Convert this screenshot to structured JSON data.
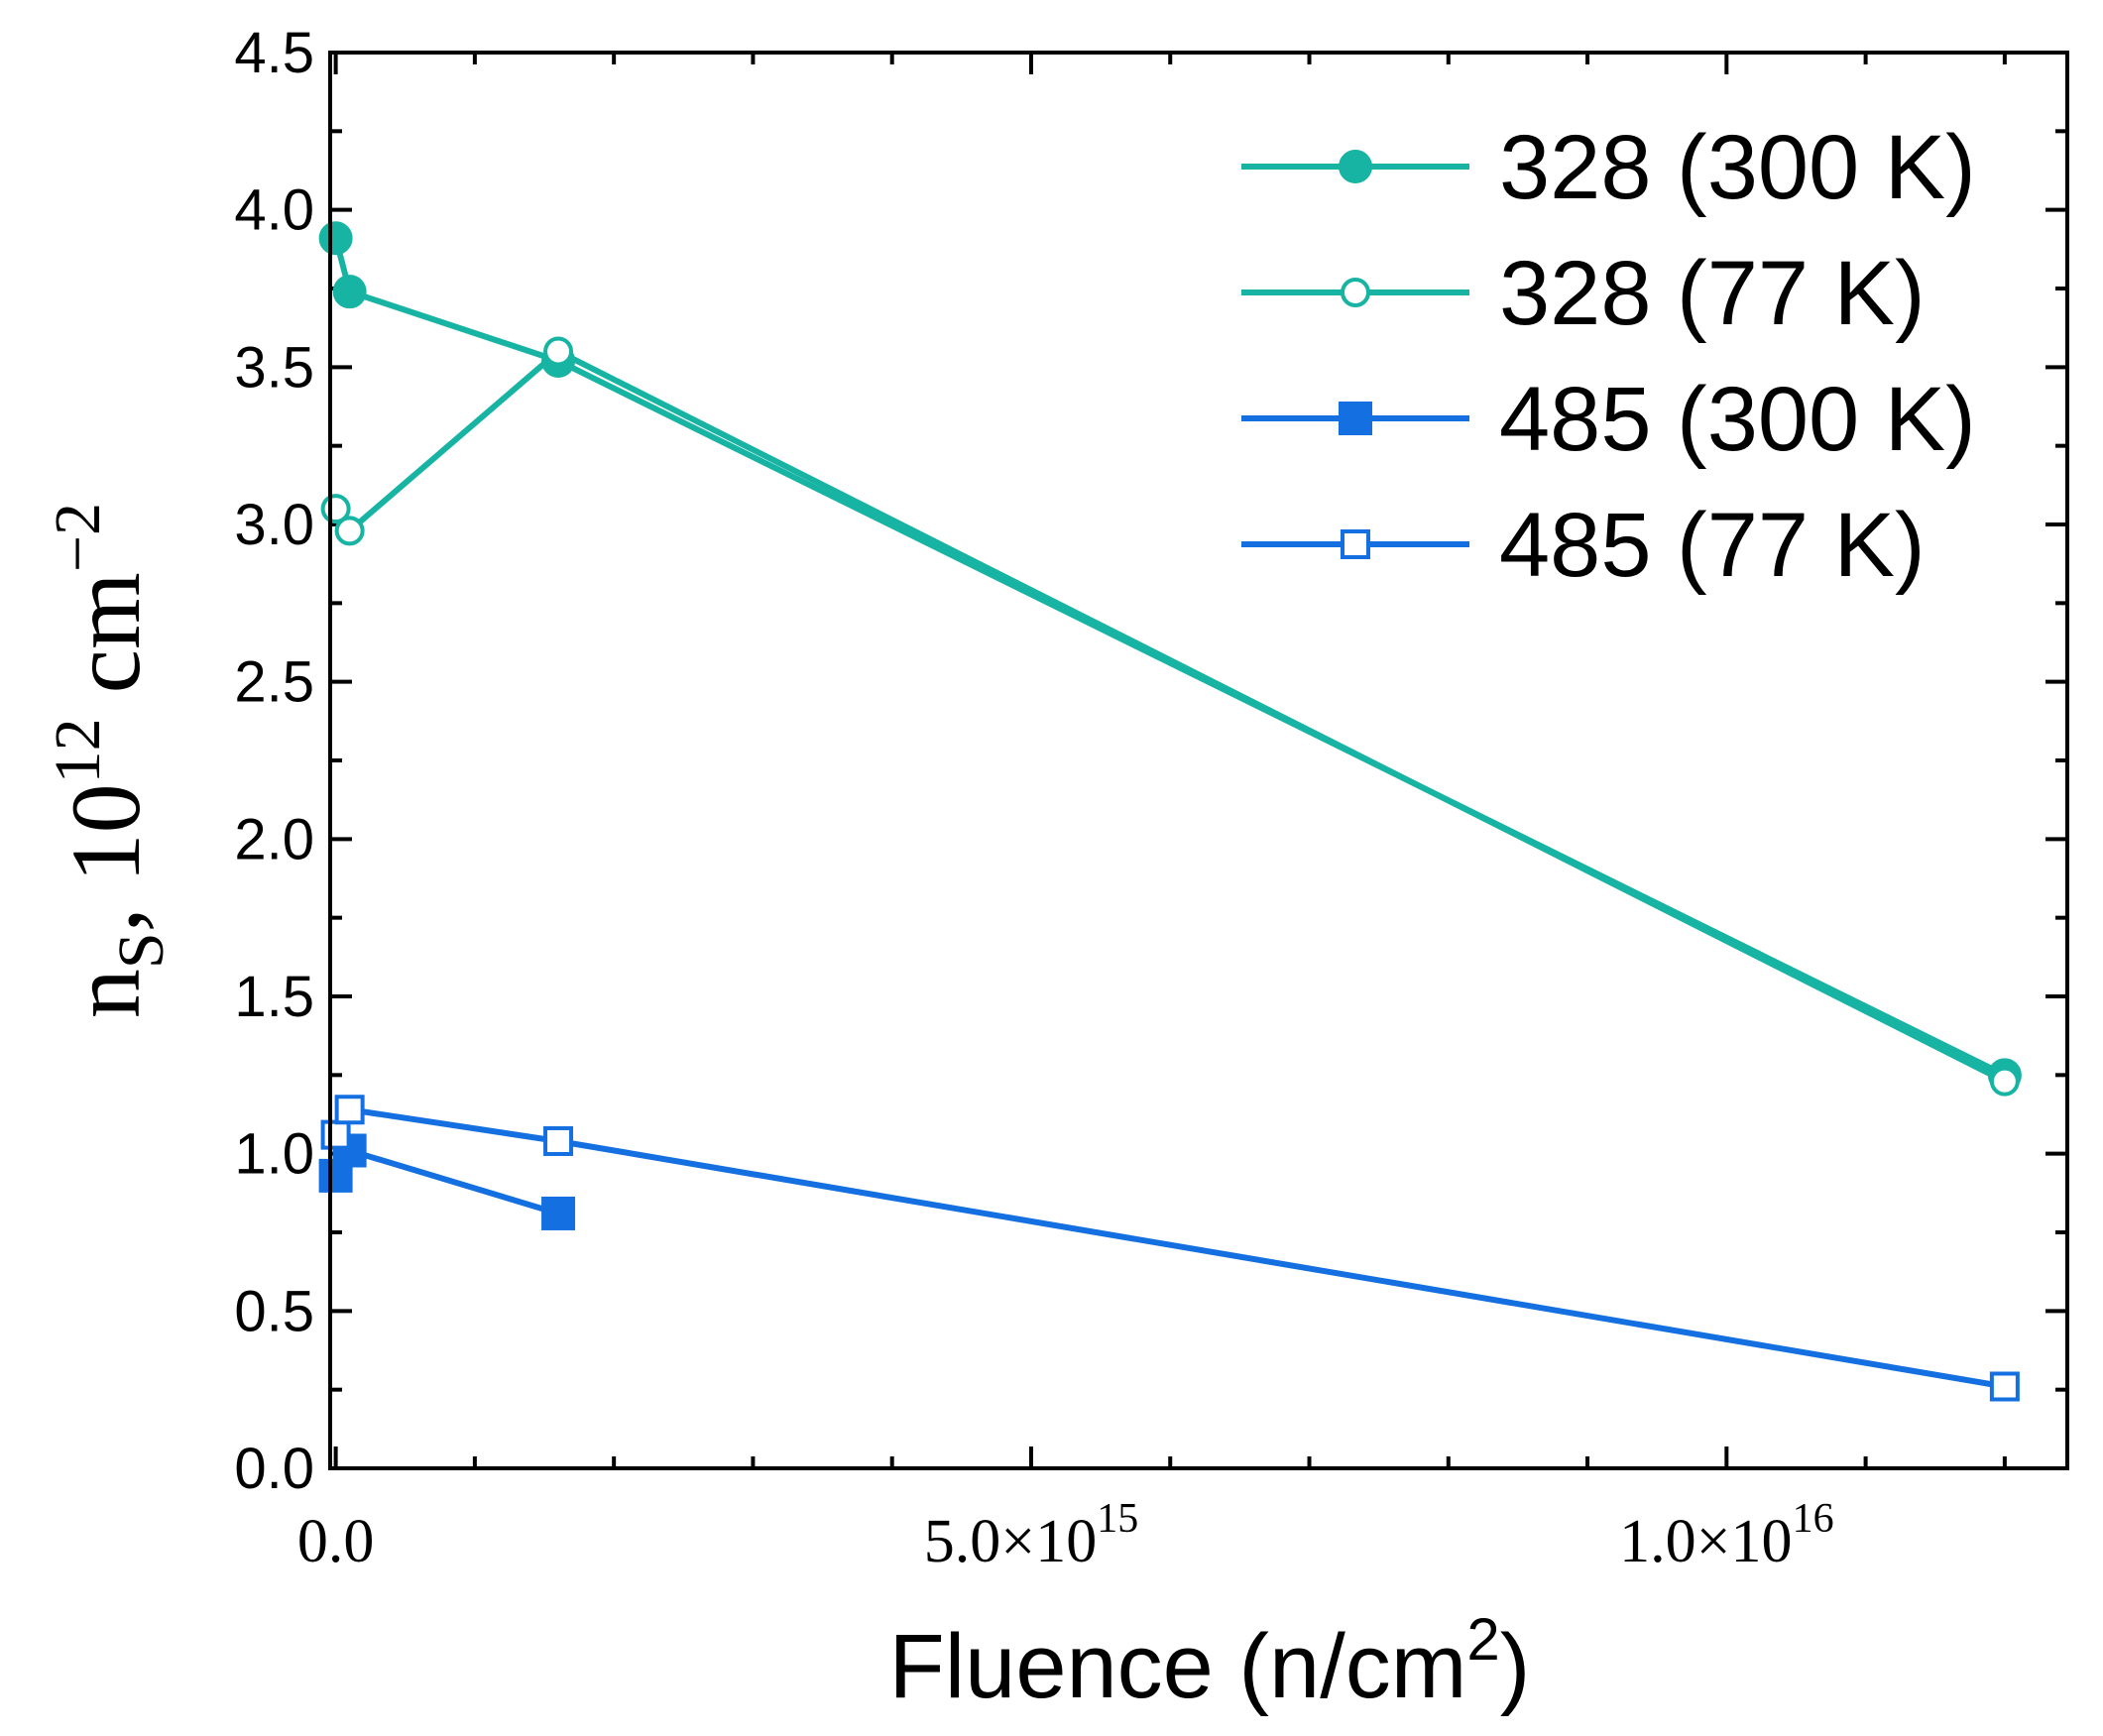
{
  "chart_data": {
    "type": "line",
    "xlabel": "Fluence (n/cm",
    "xlabel_sup": "2",
    "xlabel_end": ")",
    "ylabel_main": "n",
    "ylabel_sub": "S",
    "ylabel_mid": ", 10",
    "ylabel_sup": "12",
    "ylabel_unit": " cm",
    "ylabel_unit_sup": "−2",
    "ylim": [
      0,
      4.5
    ],
    "xlim": [
      -40000000000000.0,
      1.245e+16
    ],
    "yticks": [
      "0.0",
      "0.5",
      "1.0",
      "1.5",
      "2.0",
      "2.5",
      "3.0",
      "3.5",
      "4.0",
      "4.5"
    ],
    "xticks": [
      {
        "value": 0,
        "mantissa": "0.0",
        "exp": ""
      },
      {
        "value": 5000000000000000.0,
        "mantissa": "5.0×10",
        "exp": "15"
      },
      {
        "value": 1e+16,
        "mantissa": "1.0×10",
        "exp": "16"
      }
    ],
    "legend_position": "top-right",
    "series": [
      {
        "name": "328 (300 K)",
        "color": "#17b3a3",
        "marker": "circle",
        "filled": true,
        "x": [
          0,
          100000000000000.0,
          1600000000000000.0,
          1.2e+16
        ],
        "y": [
          3.91,
          3.74,
          3.52,
          1.25
        ]
      },
      {
        "name": "328 (77 K)",
        "color": "#17b3a3",
        "marker": "circle",
        "filled": false,
        "x": [
          0,
          100000000000000.0,
          1600000000000000.0,
          1.2e+16
        ],
        "y": [
          3.05,
          2.98,
          3.55,
          1.23
        ]
      },
      {
        "name": "485 (300 K)",
        "color": "#1470e0",
        "marker": "square",
        "filled": true,
        "x": [
          0,
          100000000000000.0,
          1600000000000000.0
        ],
        "y": [
          0.93,
          1.01,
          0.81
        ]
      },
      {
        "name": "485 (77 K)",
        "color": "#1470e0",
        "marker": "square",
        "filled": false,
        "x": [
          0,
          100000000000000.0,
          1600000000000000.0,
          1.2e+16
        ],
        "y": [
          1.06,
          1.14,
          1.04,
          0.26
        ]
      }
    ]
  }
}
